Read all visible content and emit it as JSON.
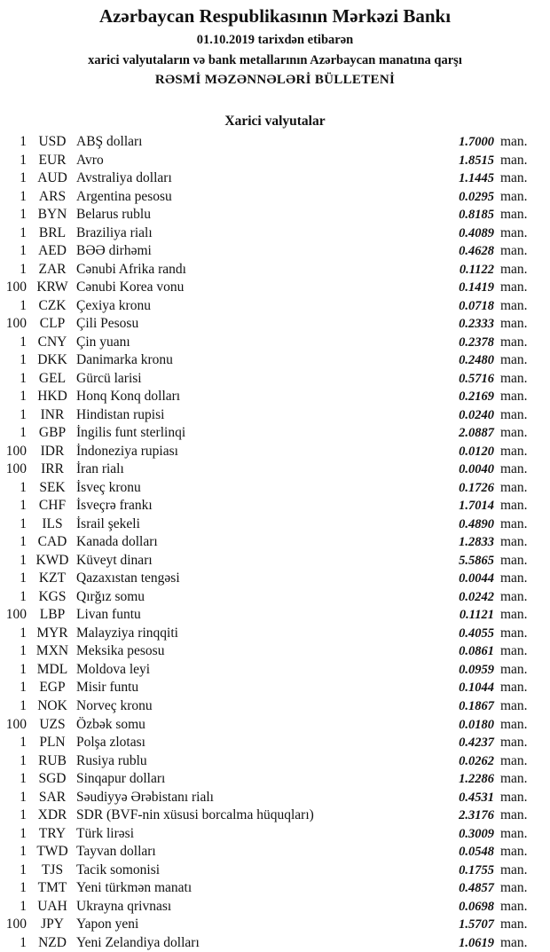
{
  "header": {
    "title": "Azərbaycan Respublikasının Mərkəzi Bankı",
    "date_line": "01.10.2019  tarixdən etibarən",
    "subtitle": "xarici valyutaların və bank metallarının Azərbaycan manatına qarşı",
    "bulletin": "RƏSMİ MƏZƏNNƏLƏRİ BÜLLETENİ"
  },
  "section_title": "Xarici valyutalar",
  "unit_label": "man.",
  "rates": [
    {
      "nominal": "1",
      "code": "USD",
      "name": "ABŞ dolları",
      "rate": "1.7000"
    },
    {
      "nominal": "1",
      "code": "EUR",
      "name": "Avro",
      "rate": "1.8515"
    },
    {
      "nominal": "1",
      "code": "AUD",
      "name": "Avstraliya dolları",
      "rate": "1.1445"
    },
    {
      "nominal": "1",
      "code": "ARS",
      "name": "Argentina pesosu",
      "rate": "0.0295"
    },
    {
      "nominal": "1",
      "code": "BYN",
      "name": "Belarus rublu",
      "rate": "0.8185"
    },
    {
      "nominal": "1",
      "code": "BRL",
      "name": "Braziliya rialı",
      "rate": "0.4089"
    },
    {
      "nominal": "1",
      "code": "AED",
      "name": "BƏƏ dirhəmi",
      "rate": "0.4628"
    },
    {
      "nominal": "1",
      "code": "ZAR",
      "name": "Cənubi Afrika randı",
      "rate": "0.1122"
    },
    {
      "nominal": "100",
      "code": "KRW",
      "name": "Cənubi Korea vonu",
      "rate": "0.1419"
    },
    {
      "nominal": "1",
      "code": "CZK",
      "name": "Çexiya kronu",
      "rate": "0.0718"
    },
    {
      "nominal": "100",
      "code": "CLP",
      "name": "Çili Pesosu",
      "rate": "0.2333"
    },
    {
      "nominal": "1",
      "code": "CNY",
      "name": "Çin yuanı",
      "rate": "0.2378"
    },
    {
      "nominal": "1",
      "code": "DKK",
      "name": "Danimarka kronu",
      "rate": "0.2480"
    },
    {
      "nominal": "1",
      "code": "GEL",
      "name": "Gürcü larisi",
      "rate": "0.5716"
    },
    {
      "nominal": "1",
      "code": "HKD",
      "name": "Honq Konq dolları",
      "rate": "0.2169"
    },
    {
      "nominal": "1",
      "code": "INR",
      "name": "Hindistan rupisi",
      "rate": "0.0240"
    },
    {
      "nominal": "1",
      "code": "GBP",
      "name": "İngilis funt sterlinqi",
      "rate": "2.0887"
    },
    {
      "nominal": "100",
      "code": "IDR",
      "name": "İndoneziya rupiası",
      "rate": "0.0120"
    },
    {
      "nominal": "100",
      "code": "IRR",
      "name": "İran rialı",
      "rate": "0.0040"
    },
    {
      "nominal": "1",
      "code": "SEK",
      "name": "İsveç kronu",
      "rate": "0.1726"
    },
    {
      "nominal": "1",
      "code": "CHF",
      "name": "İsveçrə frankı",
      "rate": "1.7014"
    },
    {
      "nominal": "1",
      "code": "ILS",
      "name": "İsrail şekeli",
      "rate": "0.4890"
    },
    {
      "nominal": "1",
      "code": "CAD",
      "name": "Kanada dolları",
      "rate": "1.2833"
    },
    {
      "nominal": "1",
      "code": "KWD",
      "name": "Küveyt dinarı",
      "rate": "5.5865"
    },
    {
      "nominal": "1",
      "code": "KZT",
      "name": "Qazaxıstan tengəsi",
      "rate": "0.0044"
    },
    {
      "nominal": "1",
      "code": "KGS",
      "name": "Qırğız somu",
      "rate": "0.0242"
    },
    {
      "nominal": "100",
      "code": "LBP",
      "name": "Livan funtu",
      "rate": "0.1121"
    },
    {
      "nominal": "1",
      "code": "MYR",
      "name": "Malayziya rinqqiti",
      "rate": "0.4055"
    },
    {
      "nominal": "1",
      "code": "MXN",
      "name": "Meksika pesosu",
      "rate": "0.0861"
    },
    {
      "nominal": "1",
      "code": "MDL",
      "name": "Moldova leyi",
      "rate": "0.0959"
    },
    {
      "nominal": "1",
      "code": "EGP",
      "name": "Misir funtu",
      "rate": "0.1044"
    },
    {
      "nominal": "1",
      "code": "NOK",
      "name": "Norveç kronu",
      "rate": "0.1867"
    },
    {
      "nominal": "100",
      "code": "UZS",
      "name": "Özbək somu",
      "rate": "0.0180"
    },
    {
      "nominal": "1",
      "code": "PLN",
      "name": "Polşa zlotası",
      "rate": "0.4237"
    },
    {
      "nominal": "1",
      "code": "RUB",
      "name": "Rusiya rublu",
      "rate": "0.0262"
    },
    {
      "nominal": "1",
      "code": "SGD",
      "name": "Sinqapur dolları",
      "rate": "1.2286"
    },
    {
      "nominal": "1",
      "code": "SAR",
      "name": "Səudiyyə Ərəbistanı rialı",
      "rate": "0.4531"
    },
    {
      "nominal": "1",
      "code": "XDR",
      "name": "SDR (BVF-nin xüsusi borcalma hüquqları)",
      "rate": "2.3176"
    },
    {
      "nominal": "1",
      "code": "TRY",
      "name": "Türk lirəsi",
      "rate": "0.3009"
    },
    {
      "nominal": "1",
      "code": "TWD",
      "name": "Tayvan dolları",
      "rate": "0.0548"
    },
    {
      "nominal": "1",
      "code": "TJS",
      "name": "Tacik somonisi",
      "rate": "0.1755"
    },
    {
      "nominal": "1",
      "code": "TMT",
      "name": "Yeni türkmən manatı",
      "rate": "0.4857"
    },
    {
      "nominal": "1",
      "code": "UAH",
      "name": "Ukrayna qrivnası",
      "rate": "0.0698"
    },
    {
      "nominal": "100",
      "code": "JPY",
      "name": "Yapon yeni",
      "rate": "1.5707"
    },
    {
      "nominal": "1",
      "code": "NZD",
      "name": "Yeni Zelandiya dolları",
      "rate": "1.0619"
    }
  ]
}
